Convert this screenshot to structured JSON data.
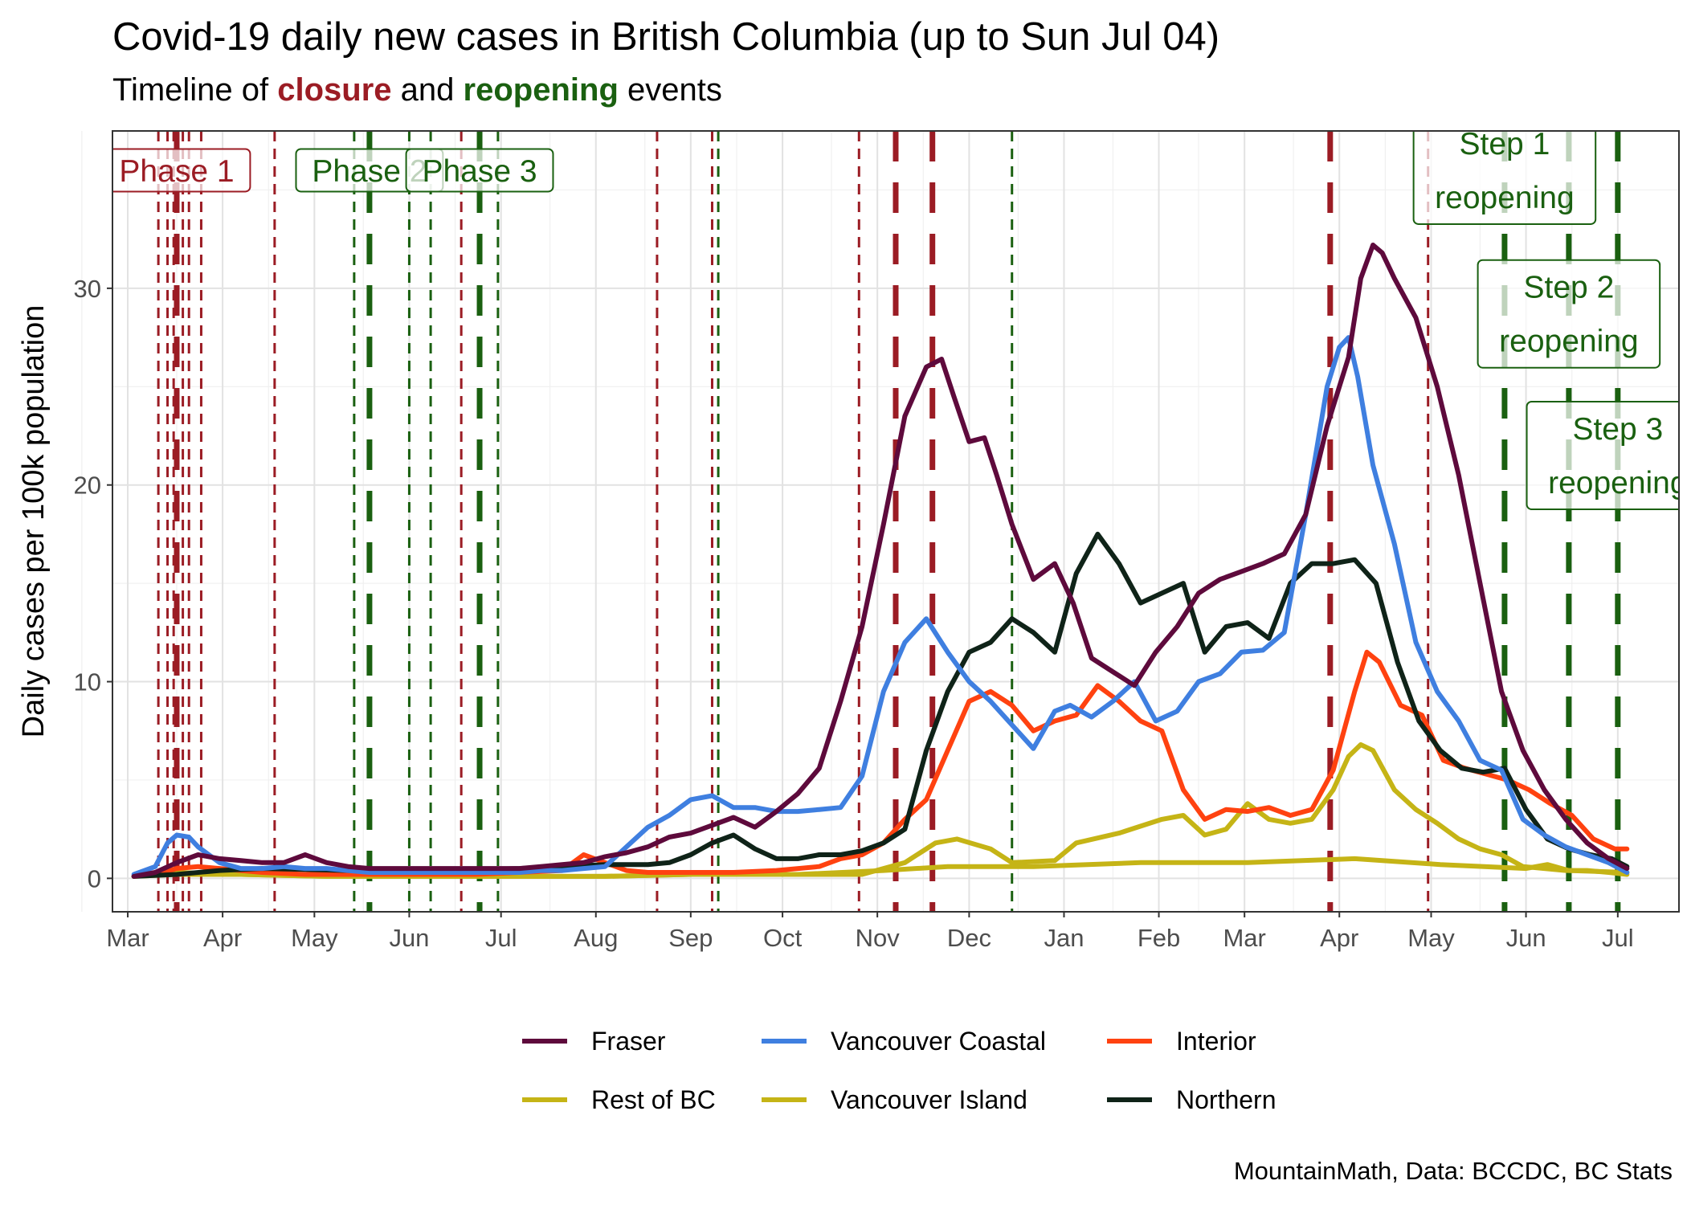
{
  "title": "Covid-19 daily new cases in British Columbia (up to Sun Jul 04)",
  "subtitle": {
    "prefix": "Timeline of ",
    "closure": "closure",
    "middle": " and ",
    "reopening": "reopening",
    "suffix": " events"
  },
  "caption": "MountainMath, Data: BCCDC, BC Stats",
  "colors": {
    "closure": "#9b1c24",
    "reopening": "#1a6010",
    "closure_label_text": "#9b1c24",
    "reopening_label_text": "#1a6010"
  },
  "chart_data": {
    "type": "line",
    "xlabel": "",
    "ylabel": "Daily cases per 100k population",
    "xlim": [
      "2020-02-25",
      "2021-07-21"
    ],
    "ylim": [
      -1.7,
      38
    ],
    "y_ticks": [
      0,
      10,
      20,
      30
    ],
    "x_ticks": [
      {
        "date": "2020-03-01",
        "label": "Mar"
      },
      {
        "date": "2020-04-01",
        "label": "Apr"
      },
      {
        "date": "2020-05-01",
        "label": "May"
      },
      {
        "date": "2020-06-01",
        "label": "Jun"
      },
      {
        "date": "2020-07-01",
        "label": "Jul"
      },
      {
        "date": "2020-08-01",
        "label": "Aug"
      },
      {
        "date": "2020-09-01",
        "label": "Sep"
      },
      {
        "date": "2020-10-01",
        "label": "Oct"
      },
      {
        "date": "2020-11-01",
        "label": "Nov"
      },
      {
        "date": "2020-12-01",
        "label": "Dec"
      },
      {
        "date": "2021-01-01",
        "label": "Jan"
      },
      {
        "date": "2021-02-01",
        "label": "Feb"
      },
      {
        "date": "2021-03-01",
        "label": "Mar"
      },
      {
        "date": "2021-04-01",
        "label": "Apr"
      },
      {
        "date": "2021-05-01",
        "label": "May"
      },
      {
        "date": "2021-06-01",
        "label": "Jun"
      },
      {
        "date": "2021-07-01",
        "label": "Jul"
      }
    ],
    "grid": true,
    "legend_position": "bottom",
    "events": [
      {
        "date": "2020-03-11",
        "kind": "closure",
        "style": "dashed"
      },
      {
        "date": "2020-03-14",
        "kind": "closure",
        "style": "dashed"
      },
      {
        "date": "2020-03-16",
        "kind": "closure",
        "style": "dashed"
      },
      {
        "date": "2020-03-17",
        "kind": "closure",
        "style": "longdash"
      },
      {
        "date": "2020-03-19",
        "kind": "closure",
        "style": "dashed"
      },
      {
        "date": "2020-03-21",
        "kind": "closure",
        "style": "dashed"
      },
      {
        "date": "2020-03-25",
        "kind": "closure",
        "style": "dashed"
      },
      {
        "date": "2020-04-18",
        "kind": "closure",
        "style": "dashed"
      },
      {
        "date": "2020-05-14",
        "kind": "reopening",
        "style": "dashed"
      },
      {
        "date": "2020-05-19",
        "kind": "reopening",
        "style": "longdash"
      },
      {
        "date": "2020-06-01",
        "kind": "reopening",
        "style": "dashed"
      },
      {
        "date": "2020-06-08",
        "kind": "reopening",
        "style": "dashed"
      },
      {
        "date": "2020-06-18",
        "kind": "closure",
        "style": "dashed"
      },
      {
        "date": "2020-06-24",
        "kind": "reopening",
        "style": "longdash"
      },
      {
        "date": "2020-06-30",
        "kind": "reopening",
        "style": "dashed"
      },
      {
        "date": "2020-08-21",
        "kind": "closure",
        "style": "dashed"
      },
      {
        "date": "2020-09-08",
        "kind": "closure",
        "style": "dashed"
      },
      {
        "date": "2020-09-10",
        "kind": "reopening",
        "style": "dashed"
      },
      {
        "date": "2020-10-26",
        "kind": "closure",
        "style": "dashed"
      },
      {
        "date": "2020-11-07",
        "kind": "closure",
        "style": "longdash"
      },
      {
        "date": "2020-11-19",
        "kind": "closure",
        "style": "longdash"
      },
      {
        "date": "2020-12-15",
        "kind": "reopening",
        "style": "dashed"
      },
      {
        "date": "2021-03-29",
        "kind": "closure",
        "style": "longdash"
      },
      {
        "date": "2021-04-30",
        "kind": "closure",
        "style": "dashed"
      },
      {
        "date": "2021-05-25",
        "kind": "reopening",
        "style": "longdash"
      },
      {
        "date": "2021-06-15",
        "kind": "reopening",
        "style": "longdash"
      },
      {
        "date": "2021-07-01",
        "kind": "reopening",
        "style": "longdash"
      }
    ],
    "annotations": [
      {
        "lines": [
          "Phase 1"
        ],
        "date": "2020-03-17",
        "y": 36,
        "kind": "closure"
      },
      {
        "lines": [
          "Phase 2"
        ],
        "date": "2020-05-19",
        "y": 36,
        "kind": "reopening"
      },
      {
        "lines": [
          "Phase 3"
        ],
        "date": "2020-06-24",
        "y": 36,
        "kind": "reopening"
      },
      {
        "lines": [
          "Step 1",
          "reopening"
        ],
        "date": "2021-05-25",
        "y": 36,
        "kind": "reopening"
      },
      {
        "lines": [
          "Step 2",
          "reopening"
        ],
        "date": "2021-06-15",
        "y": 28.7,
        "kind": "reopening"
      },
      {
        "lines": [
          "Step 3",
          "reopening"
        ],
        "date": "2021-07-01",
        "y": 21.5,
        "kind": "reopening"
      }
    ],
    "series": [
      {
        "name": "Fraser",
        "color": "#5e0a3c",
        "x": [
          "2020-03-03",
          "2020-03-10",
          "2020-03-17",
          "2020-03-24",
          "2020-03-31",
          "2020-04-07",
          "2020-04-14",
          "2020-04-21",
          "2020-04-28",
          "2020-05-05",
          "2020-05-12",
          "2020-05-19",
          "2020-05-26",
          "2020-06-02",
          "2020-06-09",
          "2020-06-16",
          "2020-06-23",
          "2020-06-30",
          "2020-07-07",
          "2020-07-14",
          "2020-07-21",
          "2020-07-28",
          "2020-08-04",
          "2020-08-11",
          "2020-08-18",
          "2020-08-25",
          "2020-09-01",
          "2020-09-08",
          "2020-09-15",
          "2020-09-22",
          "2020-09-29",
          "2020-10-06",
          "2020-10-13",
          "2020-10-20",
          "2020-10-27",
          "2020-11-03",
          "2020-11-10",
          "2020-11-17",
          "2020-11-22",
          "2020-11-26",
          "2020-12-01",
          "2020-12-06",
          "2020-12-10",
          "2020-12-15",
          "2020-12-22",
          "2020-12-29",
          "2021-01-04",
          "2021-01-10",
          "2021-01-17",
          "2021-01-24",
          "2021-01-31",
          "2021-02-07",
          "2021-02-14",
          "2021-02-21",
          "2021-02-28",
          "2021-03-07",
          "2021-03-14",
          "2021-03-21",
          "2021-03-28",
          "2021-04-04",
          "2021-04-08",
          "2021-04-12",
          "2021-04-15",
          "2021-04-19",
          "2021-04-26",
          "2021-05-03",
          "2021-05-10",
          "2021-05-17",
          "2021-05-24",
          "2021-05-31",
          "2021-06-07",
          "2021-06-14",
          "2021-06-21",
          "2021-06-28",
          "2021-07-04"
        ],
        "y": [
          0.1,
          0.3,
          0.8,
          1.2,
          1.0,
          0.9,
          0.8,
          0.8,
          1.2,
          0.8,
          0.6,
          0.5,
          0.5,
          0.5,
          0.5,
          0.5,
          0.5,
          0.5,
          0.5,
          0.6,
          0.7,
          0.8,
          1.1,
          1.3,
          1.6,
          2.1,
          2.3,
          2.7,
          3.1,
          2.6,
          3.4,
          4.3,
          5.6,
          9.0,
          12.8,
          18.0,
          23.5,
          26.0,
          26.4,
          24.5,
          22.2,
          22.4,
          20.5,
          18.0,
          15.2,
          16.0,
          14.0,
          11.2,
          10.5,
          9.8,
          11.5,
          12.8,
          14.5,
          15.2,
          15.6,
          16.0,
          16.5,
          18.5,
          23.0,
          26.5,
          30.5,
          32.2,
          31.8,
          30.5,
          28.5,
          25.0,
          20.5,
          15.0,
          9.5,
          6.5,
          4.5,
          3.0,
          1.8,
          1.0,
          0.5
        ]
      },
      {
        "name": "Vancouver Coastal",
        "color": "#3f7fe0",
        "x": [
          "2020-03-03",
          "2020-03-10",
          "2020-03-14",
          "2020-03-17",
          "2020-03-21",
          "2020-03-24",
          "2020-03-31",
          "2020-04-07",
          "2020-04-14",
          "2020-04-21",
          "2020-04-28",
          "2020-05-05",
          "2020-05-12",
          "2020-05-19",
          "2020-05-26",
          "2020-06-02",
          "2020-06-09",
          "2020-06-16",
          "2020-06-23",
          "2020-06-30",
          "2020-07-07",
          "2020-07-14",
          "2020-07-21",
          "2020-07-28",
          "2020-08-04",
          "2020-08-11",
          "2020-08-18",
          "2020-08-25",
          "2020-09-01",
          "2020-09-08",
          "2020-09-15",
          "2020-09-22",
          "2020-09-29",
          "2020-10-06",
          "2020-10-13",
          "2020-10-20",
          "2020-10-27",
          "2020-11-03",
          "2020-11-10",
          "2020-11-17",
          "2020-11-24",
          "2020-12-01",
          "2020-12-08",
          "2020-12-15",
          "2020-12-22",
          "2020-12-29",
          "2021-01-03",
          "2021-01-10",
          "2021-01-17",
          "2021-01-24",
          "2021-01-31",
          "2021-02-07",
          "2021-02-14",
          "2021-02-21",
          "2021-02-28",
          "2021-03-07",
          "2021-03-14",
          "2021-03-21",
          "2021-03-28",
          "2021-04-01",
          "2021-04-04",
          "2021-04-07",
          "2021-04-12",
          "2021-04-19",
          "2021-04-26",
          "2021-05-03",
          "2021-05-10",
          "2021-05-17",
          "2021-05-24",
          "2021-05-31",
          "2021-06-07",
          "2021-06-14",
          "2021-06-21",
          "2021-06-28",
          "2021-07-04"
        ],
        "y": [
          0.2,
          0.6,
          1.8,
          2.2,
          2.1,
          1.6,
          0.8,
          0.5,
          0.5,
          0.6,
          0.5,
          0.5,
          0.4,
          0.3,
          0.3,
          0.3,
          0.3,
          0.3,
          0.3,
          0.3,
          0.3,
          0.4,
          0.4,
          0.5,
          0.6,
          1.6,
          2.6,
          3.2,
          4.0,
          4.2,
          3.6,
          3.6,
          3.4,
          3.4,
          3.5,
          3.6,
          5.2,
          9.5,
          12.0,
          13.2,
          11.5,
          10.0,
          9.0,
          7.8,
          6.6,
          8.5,
          8.8,
          8.2,
          9.0,
          10.0,
          8.0,
          8.5,
          10.0,
          10.4,
          11.5,
          11.6,
          12.5,
          18.5,
          25.0,
          27.0,
          27.5,
          25.5,
          21.0,
          17.0,
          12.0,
          9.5,
          8.0,
          6.0,
          5.5,
          3.0,
          2.2,
          1.6,
          1.2,
          0.8,
          0.3
        ]
      },
      {
        "name": "Interior",
        "color": "#ff4210",
        "x": [
          "2020-03-03",
          "2020-03-10",
          "2020-03-17",
          "2020-03-24",
          "2020-03-31",
          "2020-04-07",
          "2020-04-14",
          "2020-04-28",
          "2020-05-12",
          "2020-05-26",
          "2020-06-09",
          "2020-06-23",
          "2020-07-07",
          "2020-07-21",
          "2020-07-28",
          "2020-08-04",
          "2020-08-11",
          "2020-08-18",
          "2020-09-01",
          "2020-09-15",
          "2020-09-29",
          "2020-10-13",
          "2020-10-20",
          "2020-10-27",
          "2020-11-03",
          "2020-11-10",
          "2020-11-17",
          "2020-11-24",
          "2020-12-01",
          "2020-12-08",
          "2020-12-15",
          "2020-12-22",
          "2020-12-29",
          "2021-01-05",
          "2021-01-12",
          "2021-01-19",
          "2021-01-26",
          "2021-02-02",
          "2021-02-09",
          "2021-02-16",
          "2021-02-23",
          "2021-03-02",
          "2021-03-09",
          "2021-03-16",
          "2021-03-23",
          "2021-03-30",
          "2021-04-06",
          "2021-04-10",
          "2021-04-14",
          "2021-04-21",
          "2021-04-28",
          "2021-05-05",
          "2021-05-12",
          "2021-05-19",
          "2021-05-26",
          "2021-06-02",
          "2021-06-09",
          "2021-06-16",
          "2021-06-23",
          "2021-06-30",
          "2021-07-04"
        ],
        "y": [
          0.1,
          0.2,
          0.5,
          0.6,
          0.5,
          0.4,
          0.3,
          0.2,
          0.2,
          0.2,
          0.2,
          0.2,
          0.3,
          0.4,
          1.2,
          0.8,
          0.4,
          0.3,
          0.3,
          0.3,
          0.4,
          0.6,
          1.0,
          1.2,
          1.8,
          3.0,
          4.0,
          6.5,
          9.0,
          9.5,
          8.8,
          7.5,
          8.0,
          8.3,
          9.8,
          9.0,
          8.0,
          7.5,
          4.5,
          3.0,
          3.5,
          3.4,
          3.6,
          3.2,
          3.5,
          5.5,
          9.5,
          11.5,
          11.0,
          8.8,
          8.3,
          6.0,
          5.6,
          5.3,
          5.0,
          4.5,
          3.8,
          3.2,
          2.0,
          1.5,
          1.5
        ]
      },
      {
        "name": "Rest of BC",
        "color": "#c5b416",
        "x": [
          "2020-03-03",
          "2020-03-17",
          "2020-04-07",
          "2020-05-05",
          "2020-06-02",
          "2020-07-07",
          "2020-08-04",
          "2020-09-01",
          "2020-10-06",
          "2020-10-27",
          "2020-11-10",
          "2020-11-20",
          "2020-11-27",
          "2020-12-08",
          "2020-12-15",
          "2020-12-29",
          "2021-01-05",
          "2021-01-19",
          "2021-02-02",
          "2021-02-09",
          "2021-02-16",
          "2021-02-23",
          "2021-03-02",
          "2021-03-09",
          "2021-03-16",
          "2021-03-23",
          "2021-03-30",
          "2021-04-04",
          "2021-04-08",
          "2021-04-12",
          "2021-04-19",
          "2021-04-26",
          "2021-05-03",
          "2021-05-10",
          "2021-05-17",
          "2021-05-24",
          "2021-05-31",
          "2021-06-07",
          "2021-06-14",
          "2021-06-21",
          "2021-06-28",
          "2021-07-04"
        ],
        "y": [
          0.1,
          0.3,
          0.2,
          0.1,
          0.1,
          0.1,
          0.1,
          0.2,
          0.2,
          0.2,
          0.8,
          1.8,
          2.0,
          1.5,
          0.8,
          0.9,
          1.8,
          2.3,
          3.0,
          3.2,
          2.2,
          2.5,
          3.8,
          3.0,
          2.8,
          3.0,
          4.5,
          6.2,
          6.8,
          6.5,
          4.5,
          3.5,
          2.8,
          2.0,
          1.5,
          1.2,
          0.6,
          0.5,
          0.4,
          0.4,
          0.3,
          0.2
        ]
      },
      {
        "name": "Vancouver Island",
        "color": "#c5b416",
        "x": [
          "2020-03-03",
          "2020-03-17",
          "2020-04-07",
          "2020-05-05",
          "2020-06-02",
          "2020-07-07",
          "2020-08-04",
          "2020-09-01",
          "2020-10-06",
          "2020-11-03",
          "2020-11-24",
          "2020-12-22",
          "2021-01-26",
          "2021-03-02",
          "2021-04-06",
          "2021-05-04",
          "2021-06-01",
          "2021-06-08",
          "2021-06-15",
          "2021-07-04"
        ],
        "y": [
          0.1,
          0.2,
          0.2,
          0.1,
          0.1,
          0.1,
          0.1,
          0.2,
          0.2,
          0.4,
          0.6,
          0.6,
          0.8,
          0.8,
          1.0,
          0.7,
          0.5,
          0.7,
          0.4,
          0.3
        ]
      },
      {
        "name": "Northern",
        "color": "#0f2318",
        "x": [
          "2020-03-03",
          "2020-03-17",
          "2020-03-31",
          "2020-04-14",
          "2020-05-12",
          "2020-06-09",
          "2020-07-07",
          "2020-08-04",
          "2020-08-18",
          "2020-08-25",
          "2020-09-01",
          "2020-09-08",
          "2020-09-15",
          "2020-09-22",
          "2020-09-29",
          "2020-10-06",
          "2020-10-13",
          "2020-10-20",
          "2020-10-27",
          "2020-11-03",
          "2020-11-10",
          "2020-11-17",
          "2020-11-24",
          "2020-12-01",
          "2020-12-08",
          "2020-12-15",
          "2020-12-22",
          "2020-12-29",
          "2021-01-05",
          "2021-01-12",
          "2021-01-19",
          "2021-01-26",
          "2021-02-02",
          "2021-02-09",
          "2021-02-16",
          "2021-02-23",
          "2021-03-02",
          "2021-03-09",
          "2021-03-16",
          "2021-03-23",
          "2021-03-30",
          "2021-04-06",
          "2021-04-13",
          "2021-04-20",
          "2021-04-27",
          "2021-05-04",
          "2021-05-11",
          "2021-05-18",
          "2021-05-25",
          "2021-06-01",
          "2021-06-08",
          "2021-06-15",
          "2021-06-22",
          "2021-06-29",
          "2021-07-04"
        ],
        "y": [
          0.1,
          0.2,
          0.4,
          0.5,
          0.4,
          0.4,
          0.5,
          0.7,
          0.7,
          0.8,
          1.2,
          1.8,
          2.2,
          1.5,
          1.0,
          1.0,
          1.2,
          1.2,
          1.4,
          1.8,
          2.5,
          6.5,
          9.5,
          11.5,
          12.0,
          13.2,
          12.5,
          11.5,
          15.5,
          17.5,
          16.0,
          14.0,
          14.5,
          15.0,
          11.5,
          12.8,
          13.0,
          12.2,
          15.0,
          16.0,
          16.0,
          16.2,
          15.0,
          11.0,
          8.0,
          6.5,
          5.6,
          5.4,
          5.6,
          3.5,
          2.0,
          1.5,
          1.2,
          1.0,
          0.6
        ]
      }
    ]
  }
}
